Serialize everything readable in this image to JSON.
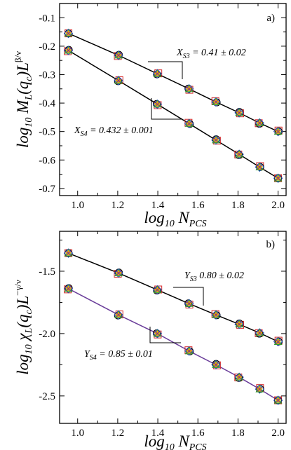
{
  "chart_data": [
    {
      "type": "scatter",
      "panel_label": "a)",
      "xlabel": "log10 N_PCS",
      "ylabel": "log10 M_L(q_c) L^{β/ν}",
      "xlim": [
        0.91,
        2.04
      ],
      "ylim": [
        -0.725,
        -0.05
      ],
      "xticks": [
        1.0,
        1.2,
        1.4,
        1.6,
        1.8,
        2.0
      ],
      "xtick_labels": [
        "1.0",
        "1.2",
        "1.4",
        "1.6",
        "1.8",
        "2.0"
      ],
      "yticks": [
        -0.1,
        -0.2,
        -0.3,
        -0.4,
        -0.5,
        -0.6,
        -0.7
      ],
      "ytick_labels": [
        "-0.1",
        "-0.2",
        "-0.3",
        "-0.4",
        "-0.5",
        "-0.6",
        "-0.7"
      ],
      "grid": false,
      "x": [
        0.954,
        1.204,
        1.398,
        1.556,
        1.69,
        1.806,
        1.908,
        2.0
      ],
      "series": [
        {
          "values": [
            -0.155,
            -0.232,
            -0.297,
            -0.35,
            -0.396,
            -0.434,
            -0.47,
            -0.5
          ],
          "line_color": "#000000"
        },
        {
          "values": [
            -0.215,
            -0.321,
            -0.404,
            -0.472,
            -0.53,
            -0.58,
            -0.625,
            -0.664
          ],
          "line_color": "#000000"
        }
      ],
      "annotations": [
        {
          "base": "X",
          "sub": "S3",
          "rest": " = 0.41 ± 0.02"
        },
        {
          "base": "X",
          "sub": "S4",
          "rest": " = 0.432 ± 0.001"
        }
      ]
    },
    {
      "type": "scatter",
      "panel_label": "b)",
      "xlabel": "log10 N_PCS",
      "ylabel": "log10 χ_L(q_c) L^{-γ/ν}",
      "xlim": [
        0.91,
        2.04
      ],
      "ylim": [
        -2.72,
        -1.18
      ],
      "xticks": [
        1.0,
        1.2,
        1.4,
        1.6,
        1.8,
        2.0
      ],
      "xtick_labels": [
        "1.0",
        "1.2",
        "1.4",
        "1.6",
        "1.8",
        "2.0"
      ],
      "yticks": [
        -1.5,
        -2.0,
        -2.5
      ],
      "ytick_labels": [
        "-1.5",
        "-2.0",
        "-2.5"
      ],
      "grid": false,
      "x": [
        0.954,
        1.204,
        1.398,
        1.556,
        1.69,
        1.806,
        1.908,
        2.0
      ],
      "series": [
        {
          "values": [
            -1.355,
            -1.515,
            -1.65,
            -1.76,
            -1.85,
            -1.925,
            -1.995,
            -2.065
          ],
          "line_color": "#000000"
        },
        {
          "values": [
            -1.64,
            -1.85,
            -2.0,
            -2.14,
            -2.25,
            -2.35,
            -2.445,
            -2.535
          ],
          "line_color": "#6a3d9a"
        }
      ],
      "annotations": [
        {
          "base": "Y",
          "sub": "S3",
          "rest": " 0.80 ± 0.02"
        },
        {
          "base": "Y",
          "sub": "S4",
          "rest": " = 0.85 ± 0.01"
        }
      ]
    }
  ],
  "marker_colors": [
    "#000000",
    "#d62728",
    "#2ca02c",
    "#1f4fb4",
    "#ff9900",
    "#7b2f8f",
    "#9acd32",
    "#e6a000"
  ]
}
